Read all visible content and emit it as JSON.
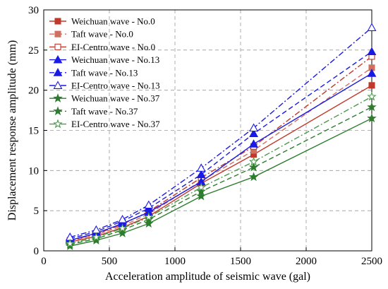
{
  "chart_data": {
    "type": "line",
    "xlabel": "Acceleration amplitude of seismic wave (gal)",
    "ylabel": "Displacement response amplitude (mm)",
    "xlim": [
      0,
      2500
    ],
    "ylim": [
      0,
      30
    ],
    "xticks": [
      0,
      500,
      1000,
      1500,
      2000,
      2500
    ],
    "yticks": [
      0,
      5,
      10,
      15,
      20,
      25,
      30
    ],
    "grid": true,
    "legend_position": "top-left",
    "x": [
      200,
      400,
      600,
      800,
      1200,
      1600,
      2500
    ],
    "series": [
      {
        "name": "Weichuan wave - No.0",
        "color": "#c0392b",
        "marker": "square-filled",
        "dash": "solid",
        "values": [
          1.1,
          1.8,
          2.9,
          4.3,
          8.4,
          12.0,
          20.6
        ]
      },
      {
        "name": "Taft wave - No.0",
        "color": "#d07060",
        "marker": "square-filled",
        "dash": "dash",
        "values": [
          1.2,
          2.0,
          3.1,
          4.6,
          8.7,
          12.5,
          22.8
        ]
      },
      {
        "name": "EI-Centro wave - No.0",
        "color": "#c0392b",
        "marker": "square-open",
        "dash": "dashdot",
        "values": [
          1.3,
          2.1,
          3.3,
          4.9,
          9.1,
          13.0,
          24.2
        ]
      },
      {
        "name": "Weichuan wave - No.13",
        "color": "#1a1ae6",
        "marker": "triangle-filled",
        "dash": "solid",
        "values": [
          1.3,
          2.2,
          3.4,
          4.8,
          8.6,
          13.3,
          22.1
        ]
      },
      {
        "name": "Taft wave - No.13",
        "color": "#1a1ae6",
        "marker": "triangle-filled",
        "dash": "dash",
        "values": [
          1.5,
          2.4,
          3.7,
          5.3,
          9.5,
          14.6,
          24.8
        ]
      },
      {
        "name": "EI-Centro wave - No.13",
        "color": "#1a1ae6",
        "marker": "triangle-open",
        "dash": "dashdot",
        "values": [
          1.7,
          2.6,
          3.9,
          5.7,
          10.3,
          15.3,
          27.8
        ]
      },
      {
        "name": "Weichuan wave - No.37",
        "color": "#2e7d2e",
        "marker": "star-filled",
        "dash": "solid",
        "values": [
          0.6,
          1.3,
          2.2,
          3.4,
          6.8,
          9.2,
          16.5
        ]
      },
      {
        "name": "Taft wave - No.37",
        "color": "#2e7d2e",
        "marker": "star-filled",
        "dash": "dash",
        "values": [
          0.8,
          1.5,
          2.6,
          3.9,
          7.4,
          10.4,
          17.9
        ]
      },
      {
        "name": "EI-Centro wave - No.37",
        "color": "#4a9a4a",
        "marker": "star-open",
        "dash": "dashdot",
        "values": [
          0.9,
          1.7,
          2.8,
          4.2,
          7.9,
          11.1,
          19.2
        ]
      }
    ]
  }
}
